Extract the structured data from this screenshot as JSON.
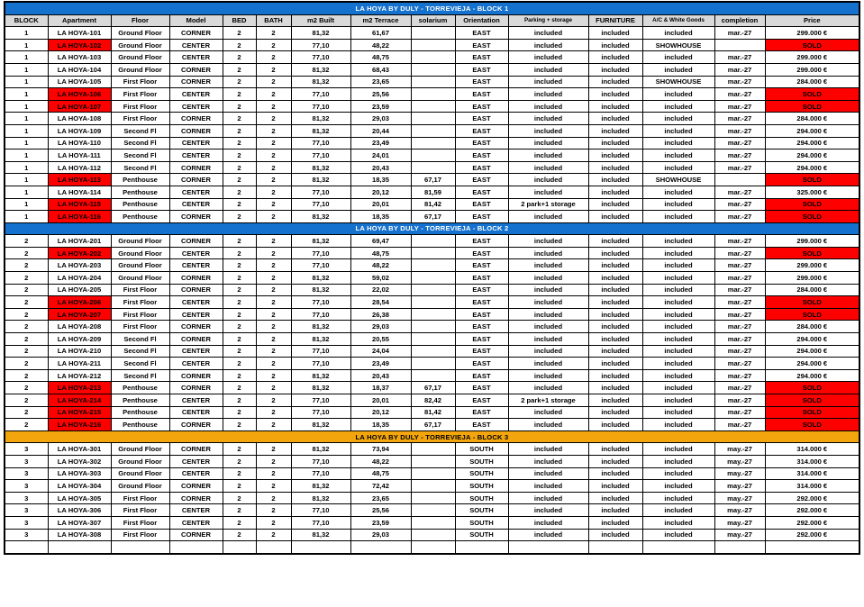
{
  "table": {
    "title_block1": "LA HOYA BY DULY - TORREVIEJA  - BLOCK 1",
    "title_block2": "LA HOYA BY DULY - TORREVIEJA  - BLOCK 2",
    "title_block3": "LA HOYA BY DULY - TORREVIEJA  - BLOCK 3",
    "columns": [
      "BLOCK",
      "Apartment",
      "Floor",
      "Model",
      "BED",
      "BATH",
      "m2 Built",
      "m2 Terrace",
      "solarium",
      "Orientation",
      "Parking + storage",
      "FURNITURE",
      "A/C & White Goods",
      "completion",
      "Price"
    ],
    "small_font_columns": [
      10,
      12
    ],
    "colors": {
      "blue_band": "#1471CE",
      "orange_band": "#F2A50C",
      "header_gray": "#D9D9D9",
      "sold_bg": "#FF0000",
      "sold_text": "#8B0000"
    },
    "blocks": [
      {
        "title": "LA HOYA BY DULY - TORREVIEJA  - BLOCK 1",
        "style": "blue",
        "show_column_header": true,
        "rows": [
          [
            "1",
            "LA HOYA-101",
            "Ground Floor",
            "CORNER",
            "2",
            "2",
            "81,32",
            "61,67",
            "",
            "EAST",
            "included",
            "included",
            "included",
            "mar.-27",
            "299.000 €"
          ],
          [
            "1",
            "LA HOYA-102",
            "Ground Floor",
            "CENTER",
            "2",
            "2",
            "77,10",
            "48,22",
            "",
            "EAST",
            "included",
            "included",
            "SHOWHOUSE",
            "",
            "SOLD"
          ],
          [
            "1",
            "LA HOYA-103",
            "Ground Floor",
            "CENTER",
            "2",
            "2",
            "77,10",
            "48,75",
            "",
            "EAST",
            "included",
            "included",
            "included",
            "mar.-27",
            "299.000 €"
          ],
          [
            "1",
            "LA HOYA-104",
            "Ground Floor",
            "CORNER",
            "2",
            "2",
            "81,32",
            "68,43",
            "",
            "EAST",
            "included",
            "included",
            "included",
            "mar.-27",
            "299.000 €"
          ],
          [
            "1",
            "LA HOYA-105",
            "First Floor",
            "CORNER",
            "2",
            "2",
            "81,32",
            "23,65",
            "",
            "EAST",
            "included",
            "included",
            "SHOWHOUSE",
            "mar.-27",
            "284.000 €"
          ],
          [
            "1",
            "LA HOYA-106",
            "First Floor",
            "CENTER",
            "2",
            "2",
            "77,10",
            "25,56",
            "",
            "EAST",
            "included",
            "included",
            "included",
            "mar.-27",
            "SOLD"
          ],
          [
            "1",
            "LA HOYA-107",
            "First Floor",
            "CENTER",
            "2",
            "2",
            "77,10",
            "23,59",
            "",
            "EAST",
            "included",
            "included",
            "included",
            "mar.-27",
            "SOLD"
          ],
          [
            "1",
            "LA HOYA-108",
            "First Floor",
            "CORNER",
            "2",
            "2",
            "81,32",
            "29,03",
            "",
            "EAST",
            "included",
            "included",
            "included",
            "mar.-27",
            "284.000 €"
          ],
          [
            "1",
            "LA HOYA-109",
            "Second Fl",
            "CORNER",
            "2",
            "2",
            "81,32",
            "20,44",
            "",
            "EAST",
            "included",
            "included",
            "included",
            "mar.-27",
            "294.000 €"
          ],
          [
            "1",
            "LA HOYA-110",
            "Second Fl",
            "CENTER",
            "2",
            "2",
            "77,10",
            "23,49",
            "",
            "EAST",
            "included",
            "included",
            "included",
            "mar.-27",
            "294.000 €"
          ],
          [
            "1",
            "LA HOYA-111",
            "Second Fl",
            "CENTER",
            "2",
            "2",
            "77,10",
            "24,01",
            "",
            "EAST",
            "included",
            "included",
            "included",
            "mar.-27",
            "294.000 €"
          ],
          [
            "1",
            "LA HOYA-112",
            "Second Fl",
            "CORNER",
            "2",
            "2",
            "81,32",
            "20,43",
            "",
            "EAST",
            "included",
            "included",
            "included",
            "mar.-27",
            "294.000 €"
          ],
          [
            "1",
            "LA HOYA-113",
            "Penthouse",
            "CORNER",
            "2",
            "2",
            "81,32",
            "18,35",
            "67,17",
            "EAST",
            "included",
            "included",
            "SHOWHOUSE",
            "",
            "SOLD"
          ],
          [
            "1",
            "LA HOYA-114",
            "Penthouse",
            "CENTER",
            "2",
            "2",
            "77,10",
            "20,12",
            "81,59",
            "EAST",
            "included",
            "included",
            "included",
            "mar.-27",
            "325.000 €"
          ],
          [
            "1",
            "LA HOYA-115",
            "Penthouse",
            "CENTER",
            "2",
            "2",
            "77,10",
            "20,01",
            "81,42",
            "EAST",
            "2 park+1 storage",
            "included",
            "included",
            "mar.-27",
            "SOLD"
          ],
          [
            "1",
            "LA HOYA-116",
            "Penthouse",
            "CORNER",
            "2",
            "2",
            "81,32",
            "18,35",
            "67,17",
            "EAST",
            "included",
            "included",
            "included",
            "mar.-27",
            "SOLD"
          ]
        ]
      },
      {
        "title": "LA HOYA BY DULY - TORREVIEJA  - BLOCK 2",
        "style": "blue",
        "show_column_header": false,
        "rows": [
          [
            "2",
            "LA HOYA-201",
            "Ground Floor",
            "CORNER",
            "2",
            "2",
            "81,32",
            "69,47",
            "",
            "EAST",
            "included",
            "included",
            "included",
            "mar.-27",
            "299.000 €"
          ],
          [
            "2",
            "LA HOYA-202",
            "Ground Floor",
            "CENTER",
            "2",
            "2",
            "77,10",
            "48,75",
            "",
            "EAST",
            "included",
            "included",
            "included",
            "mar.-27",
            "SOLD"
          ],
          [
            "2",
            "LA HOYA-203",
            "Ground Floor",
            "CENTER",
            "2",
            "2",
            "77,10",
            "48,22",
            "",
            "EAST",
            "included",
            "included",
            "included",
            "mar.-27",
            "299.000 €"
          ],
          [
            "2",
            "LA HOYA-204",
            "Ground Floor",
            "CORNER",
            "2",
            "2",
            "81,32",
            "59,02",
            "",
            "EAST",
            "included",
            "included",
            "included",
            "mar.-27",
            "299.000 €"
          ],
          [
            "2",
            "LA HOYA-205",
            "First Floor",
            "CORNER",
            "2",
            "2",
            "81,32",
            "22,02",
            "",
            "EAST",
            "included",
            "included",
            "included",
            "mar.-27",
            "284.000 €"
          ],
          [
            "2",
            "LA HOYA-206",
            "First Floor",
            "CENTER",
            "2",
            "2",
            "77,10",
            "28,54",
            "",
            "EAST",
            "included",
            "included",
            "included",
            "mar.-27",
            "SOLD"
          ],
          [
            "2",
            "LA HOYA-207",
            "First Floor",
            "CENTER",
            "2",
            "2",
            "77,10",
            "26,38",
            "",
            "EAST",
            "included",
            "included",
            "included",
            "mar.-27",
            "SOLD"
          ],
          [
            "2",
            "LA HOYA-208",
            "First Floor",
            "CORNER",
            "2",
            "2",
            "81,32",
            "29,03",
            "",
            "EAST",
            "included",
            "included",
            "included",
            "mar.-27",
            "284.000 €"
          ],
          [
            "2",
            "LA HOYA-209",
            "Second Fl",
            "CORNER",
            "2",
            "2",
            "81,32",
            "20,55",
            "",
            "EAST",
            "included",
            "included",
            "included",
            "mar.-27",
            "294.000 €"
          ],
          [
            "2",
            "LA HOYA-210",
            "Second Fl",
            "CENTER",
            "2",
            "2",
            "77,10",
            "24,04",
            "",
            "EAST",
            "included",
            "included",
            "included",
            "mar.-27",
            "294.000 €"
          ],
          [
            "2",
            "LA HOYA-211",
            "Second Fl",
            "CENTER",
            "2",
            "2",
            "77,10",
            "23,49",
            "",
            "EAST",
            "included",
            "included",
            "included",
            "mar.-27",
            "294.000 €"
          ],
          [
            "2",
            "LA HOYA-212",
            "Second Fl",
            "CORNER",
            "2",
            "2",
            "81,32",
            "20,43",
            "",
            "EAST",
            "included",
            "included",
            "included",
            "mar.-27",
            "294.000 €"
          ],
          [
            "2",
            "LA HOYA-213",
            "Penthouse",
            "CORNER",
            "2",
            "2",
            "81,32",
            "18,37",
            "67,17",
            "EAST",
            "included",
            "included",
            "included",
            "mar.-27",
            "SOLD"
          ],
          [
            "2",
            "LA HOYA-214",
            "Penthouse",
            "CENTER",
            "2",
            "2",
            "77,10",
            "20,01",
            "82,42",
            "EAST",
            "2 park+1 storage",
            "included",
            "included",
            "mar.-27",
            "SOLD"
          ],
          [
            "2",
            "LA HOYA-215",
            "Penthouse",
            "CENTER",
            "2",
            "2",
            "77,10",
            "20,12",
            "81,42",
            "EAST",
            "included",
            "included",
            "included",
            "mar.-27",
            "SOLD"
          ],
          [
            "2",
            "LA HOYA-216",
            "Penthouse",
            "CORNER",
            "2",
            "2",
            "81,32",
            "18,35",
            "67,17",
            "EAST",
            "included",
            "included",
            "included",
            "mar.-27",
            "SOLD"
          ]
        ]
      },
      {
        "title": "LA HOYA BY DULY - TORREVIEJA  - BLOCK 3",
        "style": "orange",
        "show_column_header": false,
        "rows": [
          [
            "3",
            "LA HOYA-301",
            "Ground Floor",
            "CORNER",
            "2",
            "2",
            "81,32",
            "73,94",
            "",
            "SOUTH",
            "included",
            "included",
            "included",
            "may.-27",
            "314.000 €"
          ],
          [
            "3",
            "LA HOYA-302",
            "Ground Floor",
            "CENTER",
            "2",
            "2",
            "77,10",
            "48,22",
            "",
            "SOUTH",
            "included",
            "included",
            "included",
            "may.-27",
            "314.000 €"
          ],
          [
            "3",
            "LA HOYA-303",
            "Ground Floor",
            "CENTER",
            "2",
            "2",
            "77,10",
            "48,75",
            "",
            "SOUTH",
            "included",
            "included",
            "included",
            "may.-27",
            "314.000 €"
          ],
          [
            "3",
            "LA HOYA-304",
            "Ground Floor",
            "CORNER",
            "2",
            "2",
            "81,32",
            "72,42",
            "",
            "SOUTH",
            "included",
            "included",
            "included",
            "may.-27",
            "314.000 €"
          ],
          [
            "3",
            "LA HOYA-305",
            "First Floor",
            "CORNER",
            "2",
            "2",
            "81,32",
            "23,65",
            "",
            "SOUTH",
            "included",
            "included",
            "included",
            "may.-27",
            "292.000 €"
          ],
          [
            "3",
            "LA HOYA-306",
            "First Floor",
            "CENTER",
            "2",
            "2",
            "77,10",
            "25,56",
            "",
            "SOUTH",
            "included",
            "included",
            "included",
            "may.-27",
            "292.000 €"
          ],
          [
            "3",
            "LA HOYA-307",
            "First Floor",
            "CENTER",
            "2",
            "2",
            "77,10",
            "23,59",
            "",
            "SOUTH",
            "included",
            "included",
            "included",
            "may.-27",
            "292.000 €"
          ],
          [
            "3",
            "LA HOYA-308",
            "First Floor",
            "CORNER",
            "2",
            "2",
            "81,32",
            "29,03",
            "",
            "SOUTH",
            "included",
            "included",
            "included",
            "may.-27",
            "292.000 €"
          ]
        ]
      }
    ],
    "trailing_empty_row": [
      "",
      "",
      "",
      "",
      "",
      "",
      "",
      "",
      "",
      "",
      "",
      "",
      "",
      "",
      ""
    ]
  }
}
